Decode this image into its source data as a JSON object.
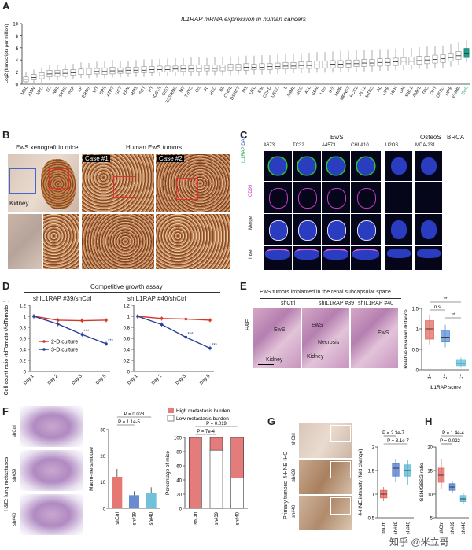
{
  "panelA": {
    "letter": "A",
    "title": "IL1RAP mRNA expression in human cancers",
    "ylabel": "Log2 (transcripts per million)",
    "highlight_color": "#1aa08c"
  },
  "panelB": {
    "letter": "B",
    "left_title": "EwS xenograft in mice",
    "right_title": "Human EwS tumors",
    "case1": "Case #1",
    "case2": "Case #2",
    "kidney": "Kidney"
  },
  "panelC": {
    "letter": "C",
    "group_ews": "EwS",
    "group_osteos": "OsteoS",
    "group_brca": "BRCA",
    "cols": [
      "A673",
      "TC32",
      "A4573",
      "CHLA10",
      "U2OS",
      "MDA-231"
    ],
    "rows": [
      "IL1RAP\nDAPI",
      "CD99",
      "Merge",
      "Inset"
    ],
    "row1_a": "IL1RAP",
    "row1_b": "DAPI"
  },
  "panelD": {
    "letter": "D",
    "title": "Competitive growth assay",
    "sub1": "shIL1RAP #39/shCtrl",
    "sub2": "shIL1RAP #40/shCtrl",
    "ylabel": "Cell count ratio (tdTomato+/tdTomato−)",
    "legend_2d": "2-D culture",
    "legend_3d": "3-D culture",
    "sig": "***"
  },
  "panelE": {
    "letter": "E",
    "title": "EwS tumors implanted in the renal subcapsular space",
    "cols": [
      "shCtrl",
      "shIL1RAP #39",
      "shIL1RAP #40"
    ],
    "row": "H&E",
    "ews": "EwS",
    "kidney": "Kidney",
    "necrosis": "Necrosis",
    "ylabel": "Relative invasion distance",
    "xlabel": "IL1RAP score",
    "sig_ns": "n.s",
    "sig2": "**"
  },
  "panelF": {
    "letter": "F",
    "row_label": "H&E: lung metastases",
    "rows": [
      "shCtrl",
      "sh#39",
      "sh#40"
    ],
    "ylabel1": "Macro-mets/mouse",
    "p1": "P = 0.023",
    "p2": "P = 1.1e-5",
    "legend_high": "High metastasis burden",
    "legend_low": "Low metastasis burden",
    "ylabel2": "Percentage of mice",
    "p3": "P = 0.019",
    "p4": "P = 7e-4"
  },
  "panelG": {
    "letter": "G",
    "row_label": "Primary tumors: 4-HNE IHC",
    "rows": [
      "shCtrl",
      "sh#39",
      "sh#40"
    ],
    "ylabel": "4-HNE intensity (fold change)",
    "p1": "P = 2.3e-7",
    "p2": "P = 3.1e-7"
  },
  "panelH": {
    "letter": "H",
    "ylabel": "GSH/GSSG ratio",
    "p1": "P = 1.4e-4",
    "p2": "P = 0.022"
  },
  "watermark": "知乎 @米立哥",
  "chart_data": [
    {
      "id": "A",
      "type": "box",
      "title": "IL1RAP mRNA expression in human cancers",
      "ylabel": "Log2 (transcripts per million)",
      "ylim": [
        0,
        10
      ],
      "yticks": [
        0,
        2,
        4,
        6,
        8,
        10
      ],
      "categories": [
        "MBL",
        "AWM",
        "NPC",
        "SC",
        "NBL",
        "SYNS",
        "PCP",
        "LP",
        "ERMS",
        "WT",
        "EPS",
        "ATRT",
        "GCT",
        "EPM",
        "RMS",
        "SET",
        "RT",
        "IDSTS",
        "GIST",
        "SCSRMS",
        "MT",
        "THYC",
        "OS",
        "FL",
        "HCC",
        "BL",
        "CHOL",
        "DSRCT",
        "MS",
        "UEL",
        "EIB",
        "COAD",
        "UESC",
        "L",
        "JMML",
        "ACC",
        "ALL",
        "GBM",
        "LOS",
        "IFS",
        "MMR",
        "MPNST",
        "HCC2",
        "ALL2",
        "MTEC",
        "AL",
        "LIHB",
        "MFH",
        "GM",
        "MBL2",
        "AMKL",
        "THC",
        "DNT",
        "DESC",
        "NFIB",
        "EMML",
        "EwS"
      ],
      "medians": [
        0.8,
        1.1,
        1.4,
        1.7,
        1.8,
        1.8,
        1.9,
        2.0,
        2.0,
        2.1,
        2.1,
        2.2,
        2.2,
        2.3,
        2.3,
        2.3,
        2.4,
        2.4,
        2.4,
        2.5,
        2.5,
        2.5,
        2.6,
        2.6,
        2.6,
        2.7,
        2.7,
        2.7,
        2.8,
        2.8,
        2.8,
        2.9,
        2.9,
        3.0,
        3.0,
        3.1,
        3.1,
        3.2,
        3.2,
        3.3,
        3.3,
        3.4,
        3.4,
        3.5,
        3.5,
        3.6,
        3.6,
        3.7,
        3.8,
        3.8,
        3.9,
        4.0,
        4.1,
        4.2,
        4.4,
        4.7,
        5.1
      ],
      "q1": [
        0.4,
        0.7,
        0.9,
        1.2,
        1.3,
        1.3,
        1.5,
        1.6,
        1.6,
        1.7,
        1.6,
        1.7,
        1.8,
        1.8,
        1.9,
        1.9,
        1.9,
        2.0,
        2.0,
        2.0,
        2.1,
        2.1,
        2.1,
        2.2,
        2.2,
        2.2,
        2.3,
        2.3,
        2.3,
        2.4,
        2.4,
        2.4,
        2.5,
        2.5,
        2.5,
        2.6,
        2.6,
        2.6,
        2.7,
        2.7,
        2.8,
        2.8,
        2.9,
        2.9,
        3.0,
        3.0,
        3.1,
        3.1,
        3.2,
        3.2,
        3.3,
        3.4,
        3.5,
        3.6,
        3.8,
        4.1,
        4.4
      ],
      "q3": [
        1.2,
        1.6,
        1.9,
        2.3,
        2.3,
        2.4,
        2.4,
        2.5,
        2.6,
        2.6,
        2.7,
        2.8,
        2.7,
        2.8,
        2.8,
        2.9,
        2.9,
        3.0,
        3.0,
        3.0,
        3.1,
        3.1,
        3.2,
        3.1,
        3.2,
        3.2,
        3.3,
        3.3,
        3.4,
        3.3,
        3.4,
        3.4,
        3.5,
        3.6,
        3.6,
        3.7,
        3.7,
        3.8,
        3.8,
        3.9,
        3.9,
        4.0,
        4.0,
        4.1,
        4.1,
        4.2,
        4.2,
        4.3,
        4.4,
        4.5,
        4.6,
        4.6,
        4.8,
        4.9,
        5.1,
        5.4,
        5.9
      ],
      "lo": [
        0.1,
        0.2,
        0.3,
        0.6,
        0.7,
        0.8,
        0.9,
        1.0,
        1.0,
        1.1,
        1.0,
        1.1,
        1.1,
        1.2,
        1.2,
        1.2,
        1.3,
        1.3,
        1.3,
        1.3,
        1.4,
        1.4,
        1.4,
        1.5,
        1.5,
        1.5,
        1.5,
        1.6,
        1.6,
        1.6,
        1.6,
        1.7,
        1.7,
        1.7,
        1.8,
        1.8,
        1.8,
        1.9,
        1.9,
        1.9,
        2.0,
        2.0,
        2.1,
        2.1,
        2.1,
        2.2,
        2.2,
        2.3,
        2.3,
        2.4,
        2.5,
        2.5,
        2.6,
        2.7,
        2.9,
        3.2,
        3.6
      ],
      "hi": [
        2.0,
        2.4,
        2.8,
        3.2,
        3.2,
        3.3,
        3.4,
        3.6,
        3.5,
        3.7,
        3.8,
        4.0,
        3.8,
        3.9,
        4.0,
        4.1,
        4.1,
        4.2,
        4.2,
        4.3,
        4.3,
        4.4,
        4.5,
        4.3,
        4.5,
        4.5,
        4.6,
        4.6,
        4.7,
        4.7,
        4.8,
        4.8,
        4.9,
        5.0,
        5.0,
        5.1,
        5.2,
        5.3,
        5.3,
        5.4,
        5.5,
        5.5,
        5.6,
        5.6,
        5.7,
        5.8,
        5.8,
        5.9,
        6.0,
        6.0,
        6.1,
        6.2,
        6.3,
        6.4,
        6.6,
        6.9,
        7.2
      ]
    },
    {
      "id": "D1",
      "type": "line",
      "title": "shIL1RAP #39/shCtrl",
      "x": [
        "Day 1",
        "Day 2",
        "Day 3",
        "Day 5"
      ],
      "ylim": [
        0,
        1.2
      ],
      "yticks": [
        0,
        0.2,
        0.4,
        0.6,
        0.8,
        1.0,
        1.2
      ],
      "series": [
        {
          "name": "2-D culture",
          "values": [
            1.0,
            0.93,
            0.92,
            0.93
          ]
        },
        {
          "name": "3-D culture",
          "values": [
            1.0,
            0.86,
            0.67,
            0.5
          ]
        }
      ]
    },
    {
      "id": "D2",
      "type": "line",
      "title": "shIL1RAP #40/shCtrl",
      "x": [
        "Day 1",
        "Day 2",
        "Day 3",
        "Day 5"
      ],
      "ylim": [
        0,
        1.2
      ],
      "yticks": [
        0,
        0.2,
        0.4,
        0.6,
        0.8,
        1.0,
        1.2
      ],
      "series": [
        {
          "name": "2-D culture",
          "values": [
            1.0,
            0.96,
            0.95,
            0.93
          ]
        },
        {
          "name": "3-D culture",
          "values": [
            1.0,
            0.85,
            0.62,
            0.42
          ]
        }
      ]
    },
    {
      "id": "E",
      "type": "box",
      "ylabel": "Relative invasion distance",
      "xlabel": "IL1RAP score",
      "categories": [
        "3+",
        "2+",
        "1+"
      ],
      "ylim": [
        0,
        1.5
      ],
      "yticks": [
        0,
        0.5,
        1.0,
        1.5
      ],
      "medians": [
        1.0,
        0.8,
        0.15
      ],
      "q1": [
        0.75,
        0.68,
        0.1
      ],
      "q3": [
        1.2,
        0.95,
        0.25
      ],
      "lo": [
        0.62,
        0.55,
        0.05
      ],
      "hi": [
        1.35,
        1.1,
        0.3
      ],
      "colors": [
        "#e06b63",
        "#5b8fd1",
        "#5fbfd8"
      ]
    },
    {
      "id": "F1",
      "type": "bar",
      "ylabel": "Macro-mets/mouse",
      "categories": [
        "shCtrl",
        "sh#39",
        "sh#40"
      ],
      "values": [
        12,
        5,
        6
      ],
      "errors": [
        3,
        1.5,
        2
      ],
      "ylim": [
        0,
        30
      ],
      "yticks": [
        0,
        10,
        20,
        30
      ],
      "colors": [
        "#e0605a",
        "#4f78c9",
        "#57b6d3"
      ]
    },
    {
      "id": "F2",
      "type": "bar",
      "ylabel": "Percentage of mice",
      "categories": [
        "shCtrl",
        "sh#39",
        "sh#40"
      ],
      "series": [
        {
          "name": "High metastasis burden",
          "values": [
            100,
            18,
            57
          ]
        },
        {
          "name": "Low metastasis burden",
          "values": [
            0,
            82,
            43
          ]
        }
      ],
      "ylim": [
        0,
        100
      ],
      "yticks": [
        0,
        20,
        40,
        60,
        80,
        100
      ]
    },
    {
      "id": "G",
      "type": "box",
      "ylabel": "4-HNE intensity (fold change)",
      "categories": [
        "shCtrl",
        "sh#39",
        "sh#40"
      ],
      "ylim": [
        0.5,
        2.0
      ],
      "yticks": [
        0.5,
        1.0,
        1.5,
        2.0
      ],
      "medians": [
        1.0,
        1.55,
        1.5
      ],
      "q1": [
        0.92,
        1.38,
        1.38
      ],
      "q3": [
        1.08,
        1.65,
        1.62
      ],
      "lo": [
        0.85,
        1.25,
        1.2
      ],
      "hi": [
        1.15,
        1.75,
        1.72
      ],
      "colors": [
        "#e0605a",
        "#4f78c9",
        "#57b6d3"
      ]
    },
    {
      "id": "H",
      "type": "box",
      "ylabel": "GSH/GSSG ratio",
      "categories": [
        "shCtrl",
        "sh#39",
        "sh#40"
      ],
      "ylim": [
        5,
        20
      ],
      "yticks": [
        5,
        10,
        15,
        20
      ],
      "medians": [
        14,
        11.5,
        9
      ],
      "q1": [
        12.5,
        10.8,
        8.4
      ],
      "q3": [
        15.5,
        12.2,
        9.7
      ],
      "lo": [
        11,
        10.2,
        7.8
      ],
      "hi": [
        17.5,
        12.8,
        10.2
      ],
      "colors": [
        "#e0605a",
        "#4f78c9",
        "#57b6d3"
      ]
    }
  ]
}
